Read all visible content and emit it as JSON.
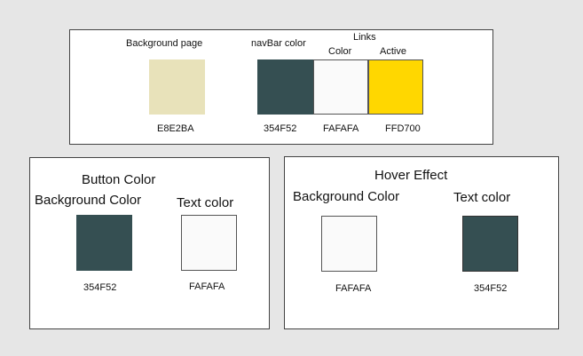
{
  "top_panel": {
    "background_page_label": "Background page",
    "background_page_hex": "E8E2BA",
    "navbar_label": "navBar color",
    "navbar_hex": "354F52",
    "links_label": "Links",
    "color_label": "Color",
    "active_label": "Active",
    "links_color_hex": "FAFAFA",
    "links_active_hex": "FFD700"
  },
  "button_panel": {
    "title": "Button Color",
    "background_label": "Background Color",
    "text_label": "Text color",
    "background_hex": "354F52",
    "text_hex": "FAFAFA"
  },
  "hover_panel": {
    "title": "Hover Effect",
    "background_label": "Background Color",
    "text_label": "Text color",
    "background_hex": "FAFAFA",
    "text_hex": "354F52"
  },
  "colors": {
    "page_bg": "#E8E2BA",
    "navbar": "#354F52",
    "light": "#FAFAFA",
    "active": "#FFD700"
  }
}
